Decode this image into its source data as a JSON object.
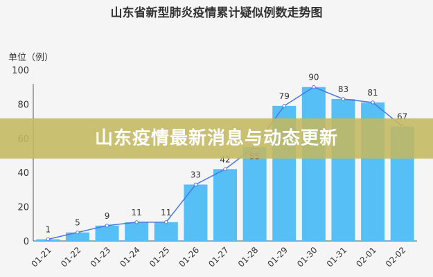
{
  "chart_data": {
    "type": "bar",
    "title": "山东省新型肺炎疫情累计疑似例数走势图",
    "ylabel": "单位（例）",
    "xlabel": "",
    "categories": [
      "01-21",
      "01-22",
      "01-23",
      "01-24",
      "01-25",
      "01-26",
      "01-27",
      "01-28",
      "01-29",
      "01-30",
      "01-31",
      "02-01",
      "02-02"
    ],
    "values": [
      1,
      5,
      9,
      11,
      11,
      33,
      42,
      55,
      79,
      90,
      83,
      81,
      67
    ],
    "ylim": [
      0,
      100
    ],
    "yticks": [
      0,
      20,
      40,
      60,
      80,
      100
    ],
    "overlay_line": true,
    "grid": false,
    "colors": {
      "bar": "#56bff5",
      "line": "#4a78e0",
      "marker": "#ffffff"
    }
  },
  "banner": {
    "text": "山东疫情最新消息与动态更新",
    "color": "#c4b860"
  }
}
